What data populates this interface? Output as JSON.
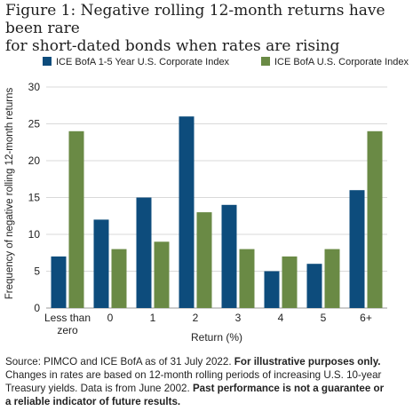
{
  "figure": {
    "title_line1": "Figure 1: Negative rolling 12-month returns have been rare",
    "title_line2": "for short-dated bonds when rates are rising"
  },
  "chart_data": {
    "type": "bar",
    "categories": [
      "Less than zero",
      "0",
      "1",
      "2",
      "3",
      "4",
      "5",
      "6+"
    ],
    "category_labels": [
      [
        "Less than",
        "zero"
      ],
      [
        "0"
      ],
      [
        "1"
      ],
      [
        "2"
      ],
      [
        "3"
      ],
      [
        "4"
      ],
      [
        "5"
      ],
      [
        "6+"
      ]
    ],
    "series": [
      {
        "name": "ICE BofA 1-5 Year U.S. Corporate Index",
        "color": "#0d4c7c",
        "values": [
          7,
          12,
          15,
          26,
          14,
          5,
          6,
          16
        ]
      },
      {
        "name": "ICE BofA U.S. Corporate Index",
        "color": "#6a8a45",
        "values": [
          24,
          8,
          9,
          13,
          8,
          7,
          8,
          24
        ]
      }
    ],
    "xlabel": "Return (%)",
    "ylabel": "Frequency of negative rolling 12-month returns",
    "ylim": [
      0,
      30
    ],
    "yticks": [
      0,
      5,
      10,
      15,
      20,
      25,
      30
    ],
    "grid": true,
    "legend_position": "top"
  },
  "source": {
    "line1_text": "Source: PIMCO and ICE BofA as of 31 July 2022.",
    "line1_bold": "For illustrative purposes only.",
    "line2": "Changes in rates are based on 12-month rolling periods of increasing U.S. 10-year",
    "line3_text": "Treasury yields. Data is from June 2002.",
    "line3_bold": "Past performance is not a guarantee or",
    "line4_bold": "a reliable indicator of future results."
  }
}
